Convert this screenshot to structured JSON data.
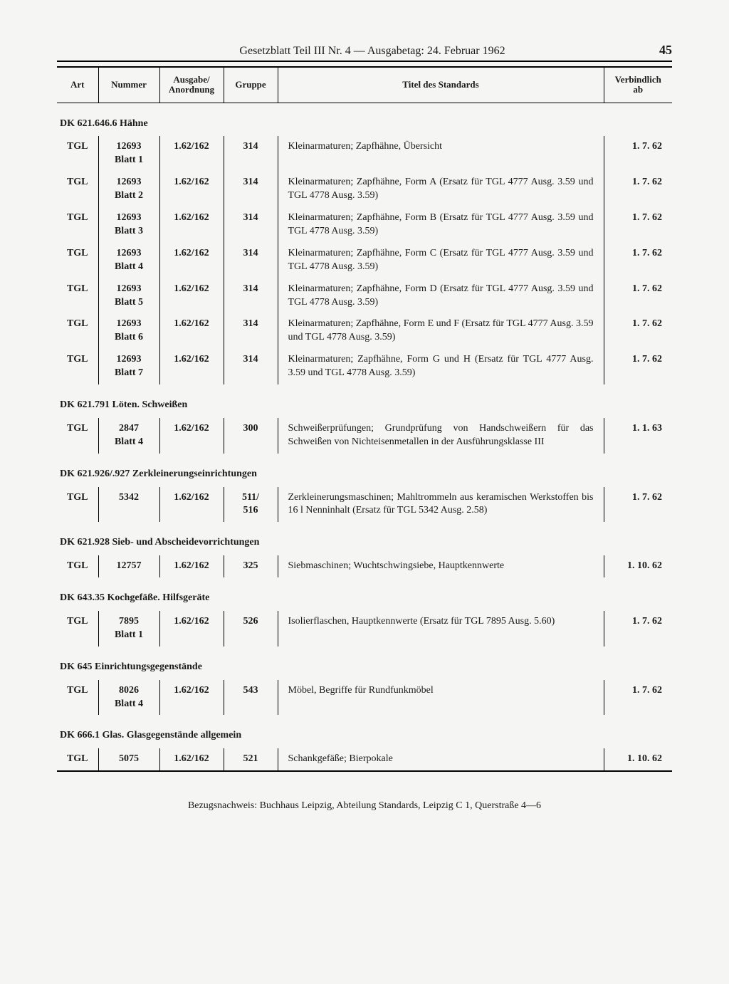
{
  "header": {
    "title": "Gesetzblatt Teil III Nr. 4 — Ausgabetag: 24. Februar 1962",
    "page_number": "45"
  },
  "columns": {
    "art": "Art",
    "nummer": "Nummer",
    "ausgabe": "Ausgabe/\nAnordnung",
    "gruppe": "Gruppe",
    "titel": "Titel des Standards",
    "verb": "Verbindlich\nab"
  },
  "sections": [
    {
      "heading": "DK 621.646.6 Hähne",
      "rows": [
        {
          "art": "TGL",
          "nummer": "12693\nBlatt 1",
          "ausgabe": "1.62/162",
          "gruppe": "314",
          "titel": "Kleinarmaturen; Zapfhähne, Übersicht",
          "verb": "1.  7. 62"
        },
        {
          "art": "TGL",
          "nummer": "12693\nBlatt 2",
          "ausgabe": "1.62/162",
          "gruppe": "314",
          "titel": "Kleinarmaturen; Zapfhähne, Form A (Ersatz für TGL 4777 Ausg. 3.59 und TGL 4778 Ausg. 3.59)",
          "verb": "1.  7. 62"
        },
        {
          "art": "TGL",
          "nummer": "12693\nBlatt 3",
          "ausgabe": "1.62/162",
          "gruppe": "314",
          "titel": "Kleinarmaturen; Zapfhähne, Form B (Ersatz für TGL 4777 Ausg. 3.59 und TGL 4778 Ausg. 3.59)",
          "verb": "1.  7. 62"
        },
        {
          "art": "TGL",
          "nummer": "12693\nBlatt 4",
          "ausgabe": "1.62/162",
          "gruppe": "314",
          "titel": "Kleinarmaturen; Zapfhähne, Form C (Ersatz für TGL 4777 Ausg. 3.59 und TGL 4778 Ausg. 3.59)",
          "verb": "1.  7. 62"
        },
        {
          "art": "TGL",
          "nummer": "12693\nBlatt 5",
          "ausgabe": "1.62/162",
          "gruppe": "314",
          "titel": "Kleinarmaturen; Zapfhähne, Form D (Ersatz für TGL 4777 Ausg. 3.59 und TGL 4778 Ausg. 3.59)",
          "verb": "1.  7. 62"
        },
        {
          "art": "TGL",
          "nummer": "12693\nBlatt 6",
          "ausgabe": "1.62/162",
          "gruppe": "314",
          "titel": "Kleinarmaturen; Zapfhähne, Form E und F (Ersatz für TGL 4777 Ausg. 3.59 und TGL 4778 Ausg. 3.59)",
          "verb": "1.  7. 62"
        },
        {
          "art": "TGL",
          "nummer": "12693\nBlatt 7",
          "ausgabe": "1.62/162",
          "gruppe": "314",
          "titel": "Kleinarmaturen; Zapfhähne, Form G und H (Ersatz für TGL 4777 Ausg. 3.59 und TGL 4778 Ausg. 3.59)",
          "verb": "1.  7. 62"
        }
      ]
    },
    {
      "heading": "DK 621.791 Löten. Schweißen",
      "rows": [
        {
          "art": "TGL",
          "nummer": "2847\nBlatt 4",
          "ausgabe": "1.62/162",
          "gruppe": "300",
          "titel": "Schweißerprüfungen; Grundprüfung von Handschweißern für das Schweißen von Nichteisenmetallen in der Ausführungsklasse III",
          "verb": "1.  1. 63"
        }
      ]
    },
    {
      "heading": "DK 621.926/.927 Zerkleinerungseinrichtungen",
      "rows": [
        {
          "art": "TGL",
          "nummer": "5342",
          "ausgabe": "1.62/162",
          "gruppe": "511/\n516",
          "titel": "Zerkleinerungsmaschinen; Mahltrommeln aus keramischen Werkstoffen bis 16 l Nenninhalt (Ersatz für TGL 5342 Ausg. 2.58)",
          "verb": "1.  7. 62"
        }
      ]
    },
    {
      "heading": "DK 621.928 Sieb- und Abscheidevorrichtungen",
      "rows": [
        {
          "art": "TGL",
          "nummer": "12757",
          "ausgabe": "1.62/162",
          "gruppe": "325",
          "titel": "Siebmaschinen; Wuchtschwingsiebe, Hauptkennwerte",
          "verb": "1. 10. 62"
        }
      ]
    },
    {
      "heading": "DK 643.35 Kochgefäße. Hilfsgeräte",
      "rows": [
        {
          "art": "TGL",
          "nummer": "7895\nBlatt 1",
          "ausgabe": "1.62/162",
          "gruppe": "526",
          "titel": "Isolierflaschen, Hauptkennwerte (Ersatz für TGL 7895 Ausg. 5.60)",
          "verb": "1.  7. 62"
        }
      ]
    },
    {
      "heading": "DK 645 Einrichtungsgegenstände",
      "rows": [
        {
          "art": "TGL",
          "nummer": "8026\nBlatt 4",
          "ausgabe": "1.62/162",
          "gruppe": "543",
          "titel": "Möbel, Begriffe für Rundfunkmöbel",
          "verb": "1.  7. 62"
        }
      ]
    },
    {
      "heading": "DK 666.1 Glas. Glasgegenstände allgemein",
      "rows": [
        {
          "art": "TGL",
          "nummer": "5075",
          "ausgabe": "1.62/162",
          "gruppe": "521",
          "titel": "Schankgefäße; Bierpokale",
          "verb": "1. 10. 62"
        }
      ]
    }
  ],
  "footer": "Bezugsnachweis: Buchhaus Leipzig, Abteilung Standards, Leipzig C 1, Querstraße 4—6"
}
